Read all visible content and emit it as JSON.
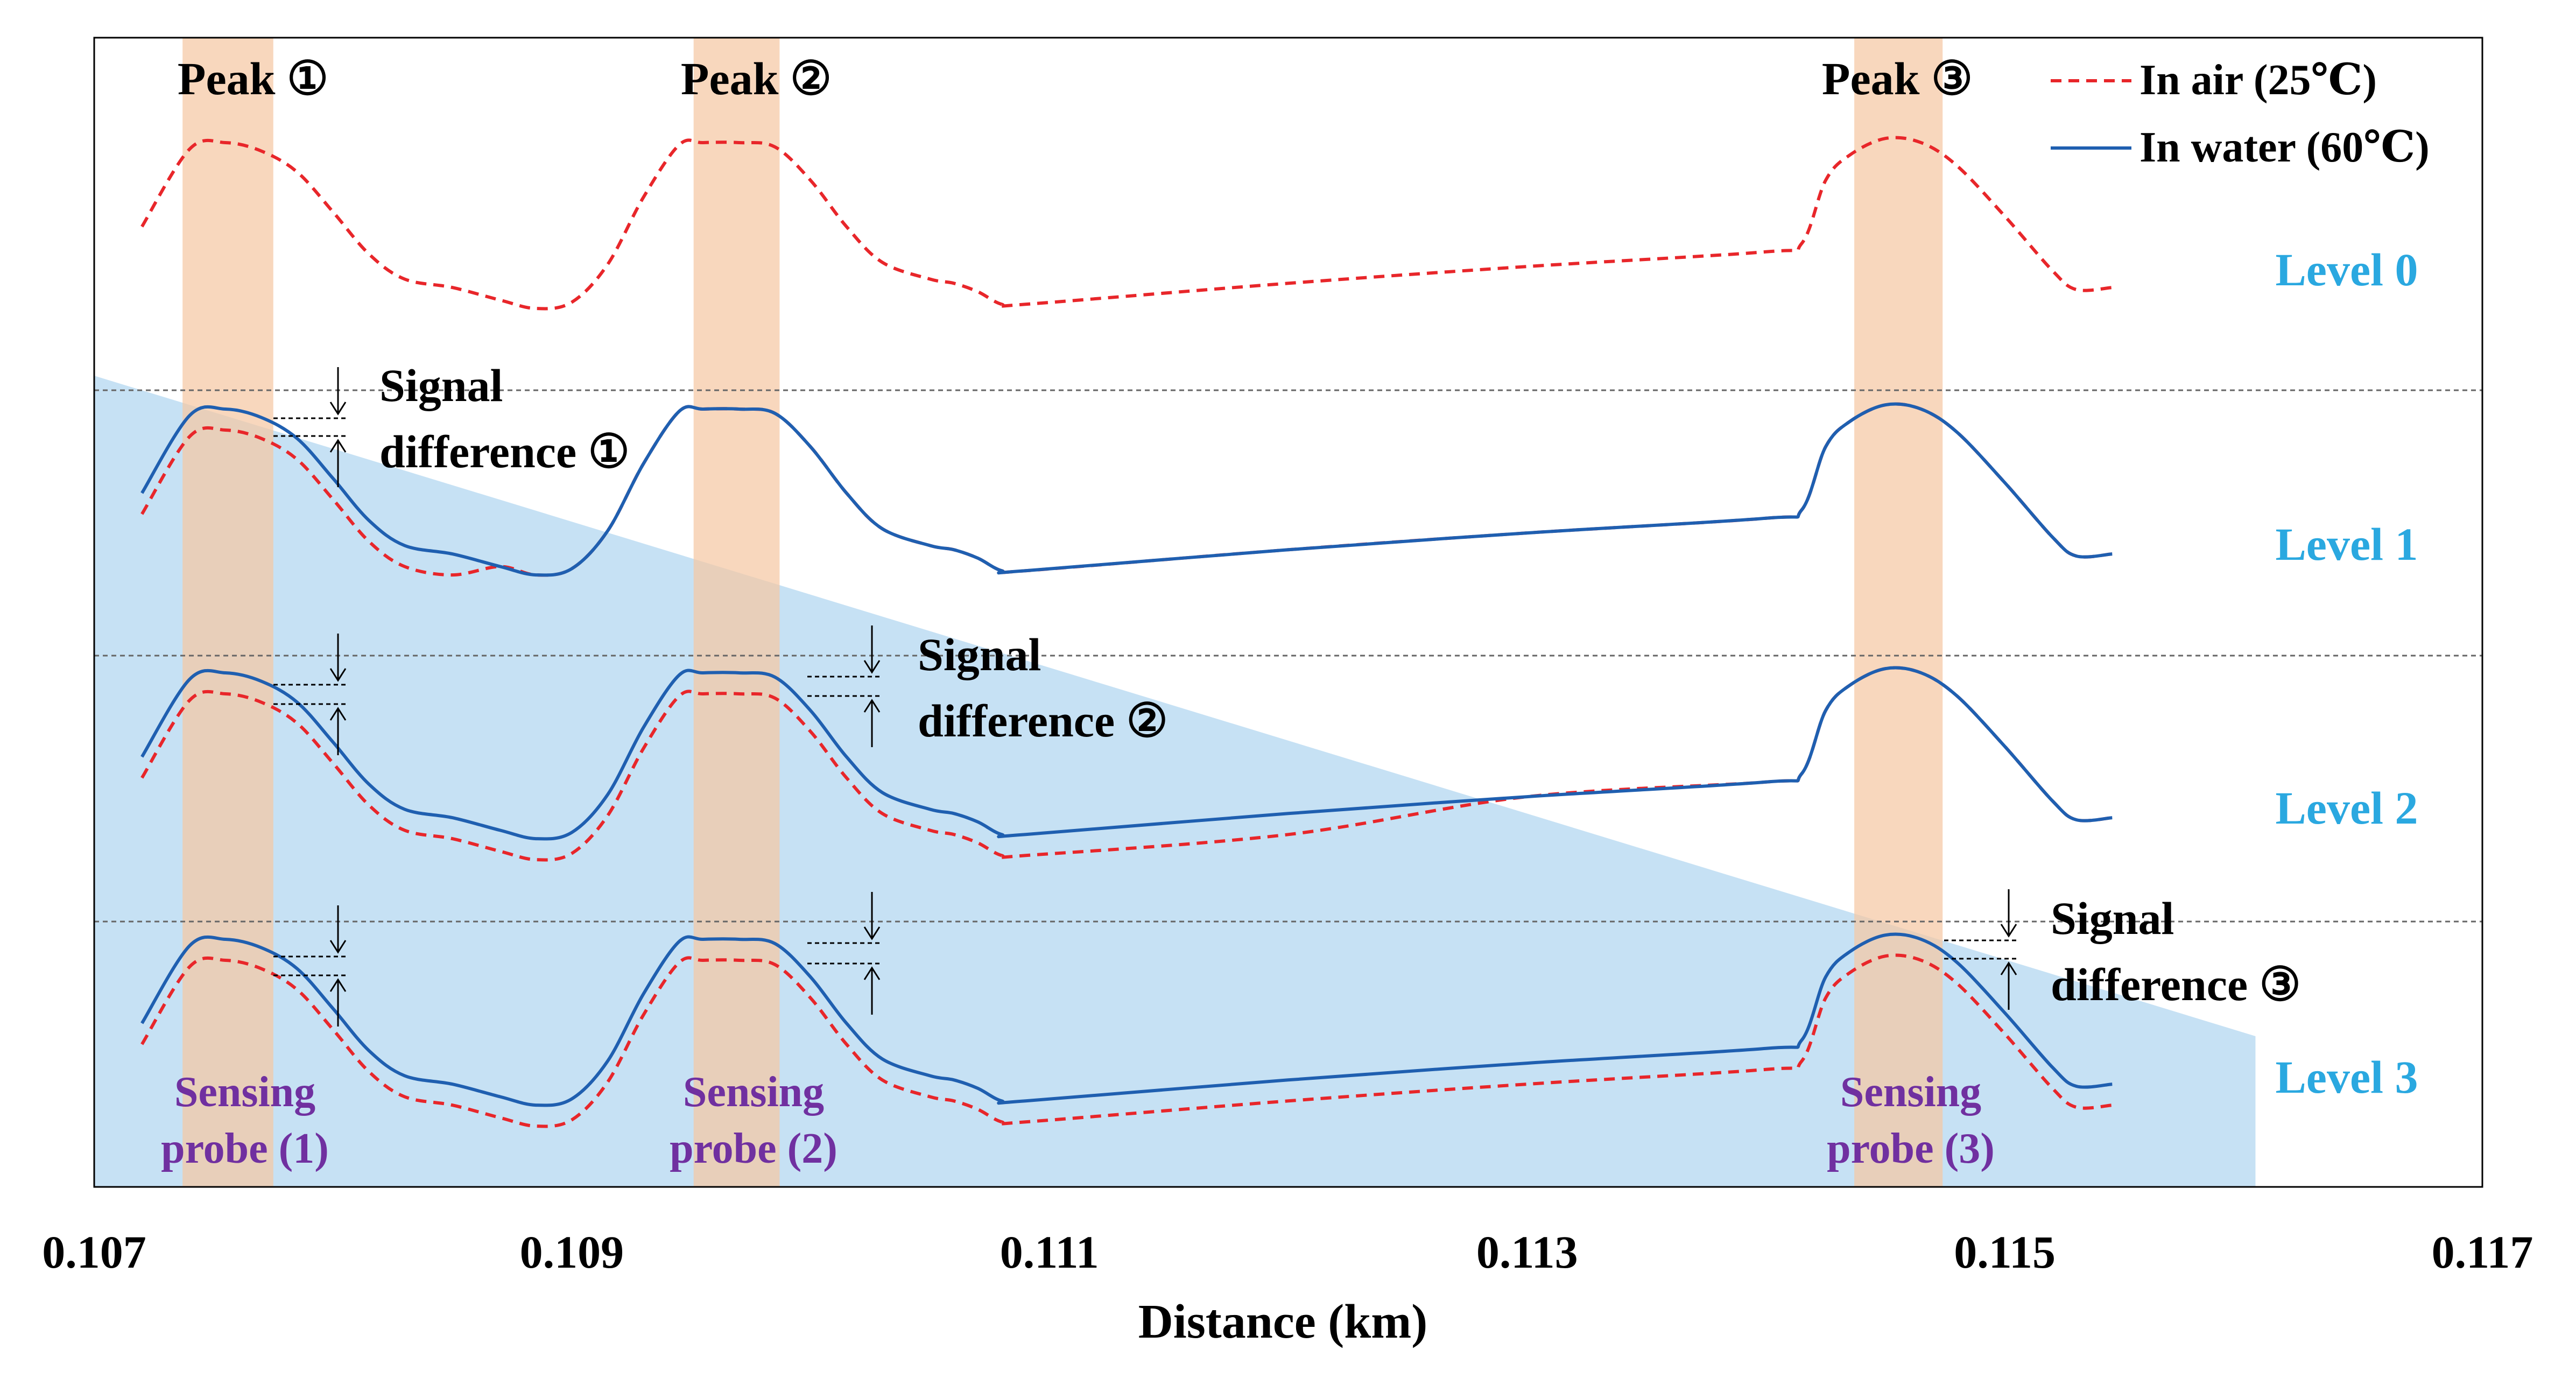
{
  "chart_data": {
    "type": "line",
    "xlabel": "Distance (km)",
    "ylabel": "",
    "xlim": [
      0.107,
      0.117
    ],
    "x_ticks": [
      "0.107",
      "0.109",
      "0.111",
      "0.113",
      "0.115",
      "0.117"
    ],
    "grid": false,
    "legend_position": "top-right",
    "legend": [
      {
        "label": "In air (25℃)",
        "color": "#e8262a",
        "dash": "dashed"
      },
      {
        "label": "In water (60℃)",
        "color": "#1f5fb0",
        "dash": "solid"
      }
    ],
    "levels": [
      {
        "label": "Level 0",
        "offset": 0
      },
      {
        "label": "Level 1",
        "offset": 1
      },
      {
        "label": "Level 2",
        "offset": 2
      },
      {
        "label": "Level 3",
        "offset": 3
      }
    ],
    "peaks": [
      {
        "label": "Peak ①",
        "x_range": [
          0.10737,
          0.10775
        ]
      },
      {
        "label": "Peak ②",
        "x_range": [
          0.10951,
          0.10987
        ]
      },
      {
        "label": "Peak ③",
        "x_range": [
          0.11437,
          0.11474
        ]
      }
    ],
    "probes": [
      {
        "line1": "Sensing",
        "line2": "probe (1)"
      },
      {
        "line1": "Sensing",
        "line2": "probe (2)"
      },
      {
        "line1": "Sensing",
        "line2": "probe (3)"
      }
    ],
    "signal_differences": [
      {
        "line1": "Signal",
        "line2": "difference ①"
      },
      {
        "line1": "Signal",
        "line2": "difference ②"
      },
      {
        "line1": "Signal",
        "line2": "difference ③"
      }
    ],
    "x": [
      0.1072,
      0.1074,
      0.10755,
      0.1077,
      0.10785,
      0.108,
      0.10815,
      0.1083,
      0.1085,
      0.1087,
      0.10885,
      0.109,
      0.10915,
      0.1093,
      0.10945,
      0.10955,
      0.1097,
      0.10985,
      0.11,
      0.11015,
      0.1103,
      0.1105,
      0.1106,
      0.1107,
      0.1108,
      0.1109,
      0.112,
      0.113,
      0.114,
      0.11415,
      0.11425,
      0.11435,
      0.1145,
      0.11465,
      0.1148,
      0.115,
      0.1152,
      0.1153,
      0.11545
    ],
    "series": [
      {
        "name": "In air (25℃)",
        "values": [
          0.6,
          0.97,
          1.0,
          0.96,
          0.86,
          0.67,
          0.47,
          0.35,
          0.31,
          0.25,
          0.21,
          0.24,
          0.42,
          0.74,
          0.99,
          1.0,
          1.0,
          0.98,
          0.82,
          0.6,
          0.43,
          0.35,
          0.33,
          0.29,
          0.23,
          0.23,
          0.33,
          0.41,
          0.48,
          0.52,
          0.82,
          0.94,
          1.02,
          1.0,
          0.89,
          0.65,
          0.39,
          0.3,
          0.31
        ]
      },
      {
        "name": "In water (60℃)",
        "values": [
          0.6,
          0.97,
          1.0,
          0.96,
          0.86,
          0.67,
          0.47,
          0.35,
          0.31,
          0.25,
          0.21,
          0.24,
          0.42,
          0.74,
          0.99,
          1.0,
          1.0,
          0.98,
          0.82,
          0.6,
          0.43,
          0.35,
          0.33,
          0.29,
          0.23,
          0.23,
          0.33,
          0.41,
          0.48,
          0.52,
          0.82,
          0.94,
          1.02,
          1.0,
          0.89,
          0.65,
          0.39,
          0.3,
          0.31
        ]
      }
    ],
    "signal_shift_per_level": {
      "peak_1": [
        0,
        0.1,
        0.1,
        0.1
      ],
      "peak_2": [
        0,
        0.0,
        0.1,
        0.1
      ],
      "peak_3": [
        0,
        0.0,
        0.0,
        0.1
      ]
    },
    "colors": {
      "air": "#e8262a",
      "water": "#1f5fb0",
      "peak_band": "#f5c7a4",
      "triangle": "#bcdcf2",
      "level_label": "#2aa8e0",
      "probe_label": "#7030a0",
      "text": "#000000"
    }
  }
}
